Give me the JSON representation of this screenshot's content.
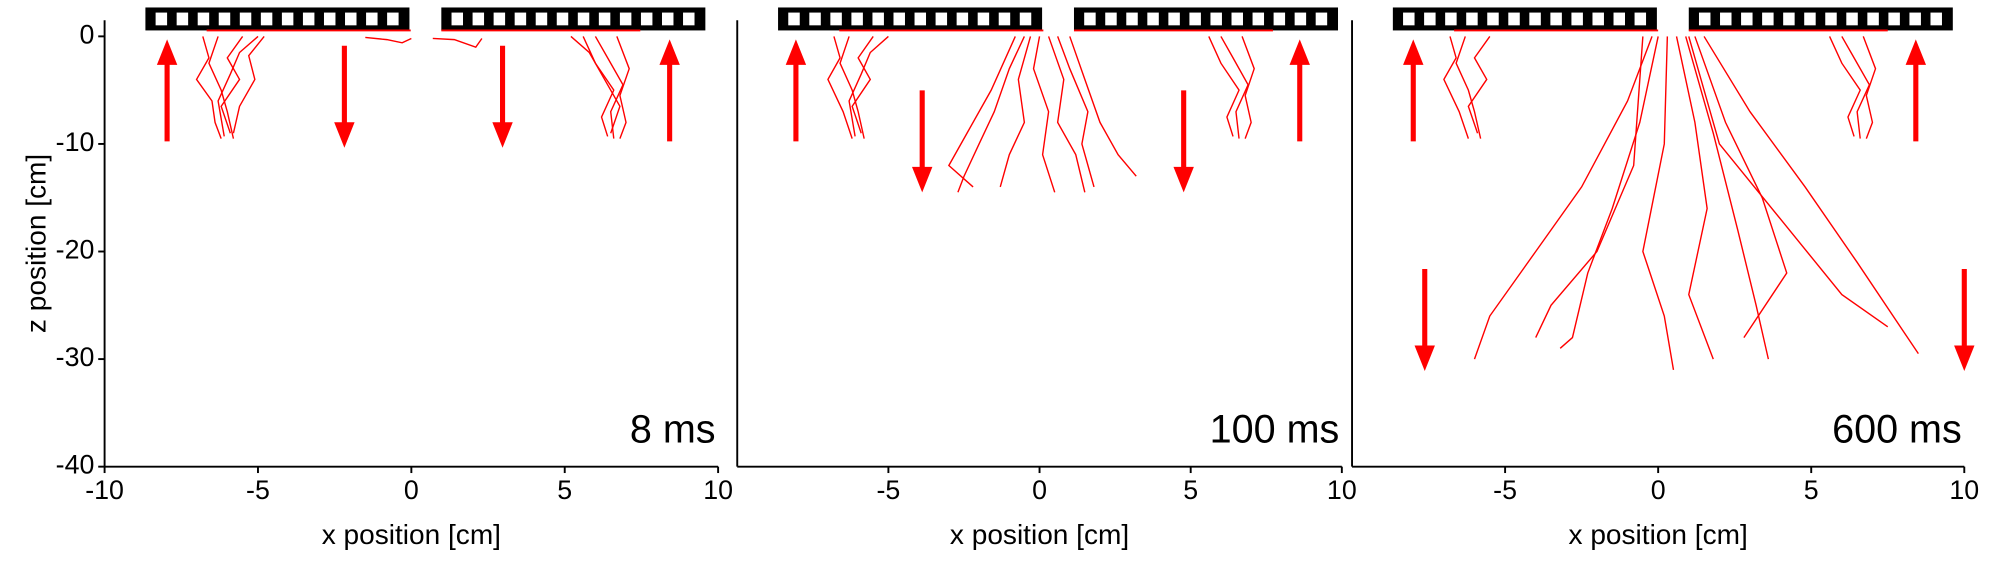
{
  "chart_data": [
    {
      "type": "line",
      "annotation": "8 ms",
      "xlabel": "x position [cm]",
      "ylabel": "z position [cm]",
      "color": "#ff0000",
      "xlim": [
        -10,
        10
      ],
      "xticks": [
        -10,
        -5,
        0,
        5,
        10
      ],
      "ylim": [
        -40,
        1.5
      ],
      "yticks": [
        0,
        -10,
        -20,
        -30,
        -40
      ],
      "series": [
        {
          "x": [
            -6.8,
            -6.6,
            -7.0,
            -6.5,
            -6.4,
            -6.2
          ],
          "values": [
            0,
            -2,
            -4,
            -6,
            -8,
            -9.5
          ]
        },
        {
          "x": [
            -6.3,
            -6.6,
            -6.2,
            -6.0,
            -5.8
          ],
          "values": [
            0,
            -2.5,
            -5,
            -7,
            -9.5
          ]
        },
        {
          "x": [
            -5.5,
            -6.0,
            -5.6,
            -6.2,
            -5.9
          ],
          "values": [
            0,
            -2,
            -4,
            -6.5,
            -9
          ]
        },
        {
          "x": [
            -5.0,
            -5.6,
            -5.9,
            -6.3,
            -6.1
          ],
          "values": [
            0,
            -1.5,
            -3.5,
            -6,
            -9.3
          ]
        },
        {
          "x": [
            -4.8,
            -5.3,
            -5.1,
            -5.6,
            -5.8
          ],
          "values": [
            0,
            -1.8,
            -4,
            -6.5,
            -9
          ]
        },
        {
          "x": [
            6.0,
            6.4,
            6.9,
            6.5,
            6.6
          ],
          "values": [
            0,
            -2,
            -4.5,
            -7,
            -9.5
          ]
        },
        {
          "x": [
            5.6,
            6.0,
            6.6,
            6.2,
            6.4
          ],
          "values": [
            0,
            -2.5,
            -5,
            -7.5,
            -9.3
          ]
        },
        {
          "x": [
            6.7,
            7.1,
            6.8,
            7.0,
            6.8
          ],
          "values": [
            0,
            -3,
            -5.5,
            -8,
            -9.5
          ]
        },
        {
          "x": [
            5.2,
            5.8,
            6.3,
            6.8,
            6.5
          ],
          "values": [
            0,
            -1.5,
            -4,
            -6.5,
            -9
          ]
        },
        {
          "x": [
            -1.5,
            -0.8,
            -0.3,
            0
          ],
          "values": [
            -0.1,
            -0.3,
            -0.6,
            -0.2
          ]
        },
        {
          "x": [
            0.7,
            1.4,
            2.1,
            2.3
          ],
          "values": [
            -0.2,
            -0.3,
            -1.0,
            -0.2
          ]
        }
      ]
    },
    {
      "type": "line",
      "annotation": "100 ms",
      "xlabel": "x position [cm]",
      "color": "#ff0000",
      "xlim": [
        -10,
        10
      ],
      "xticks": [
        -5,
        0,
        5,
        10
      ],
      "ylim": [
        -40,
        1.5
      ],
      "series": [
        {
          "x": [
            -6.8,
            -6.6,
            -7.0,
            -6.5,
            -6.2
          ],
          "values": [
            0,
            -2,
            -4,
            -7,
            -9.5
          ]
        },
        {
          "x": [
            -6.3,
            -6.6,
            -6.2,
            -6.0,
            -5.8
          ],
          "values": [
            0,
            -2.5,
            -5,
            -7,
            -9.5
          ]
        },
        {
          "x": [
            -5.5,
            -6.0,
            -5.6,
            -6.2,
            -5.9
          ],
          "values": [
            0,
            -2,
            -4,
            -6.5,
            -9
          ]
        },
        {
          "x": [
            -5.0,
            -5.6,
            -5.9,
            -6.3,
            -6.1
          ],
          "values": [
            0,
            -1.5,
            -3.5,
            -6,
            -9.3
          ]
        },
        {
          "x": [
            6.0,
            6.4,
            6.9,
            6.5,
            6.6
          ],
          "values": [
            0,
            -2,
            -4.5,
            -7,
            -9.5
          ]
        },
        {
          "x": [
            5.6,
            6.0,
            6.6,
            6.2,
            6.4
          ],
          "values": [
            0,
            -2.5,
            -5,
            -7.5,
            -9.3
          ]
        },
        {
          "x": [
            6.7,
            7.1,
            6.8,
            7.0,
            6.8
          ],
          "values": [
            0,
            -3,
            -5.5,
            -8,
            -9.5
          ]
        },
        {
          "x": [
            -0.5,
            -1,
            -1.5,
            -2.0,
            -2.5,
            -2.7
          ],
          "values": [
            0,
            -3,
            -7,
            -10,
            -13,
            -14.5
          ]
        },
        {
          "x": [
            -0.3,
            -0.7,
            -0.5,
            -1.0,
            -1.3
          ],
          "values": [
            0,
            -4,
            -8,
            -11,
            -14
          ]
        },
        {
          "x": [
            0,
            -0.2,
            0.3,
            0.1,
            0.5
          ],
          "values": [
            0,
            -3,
            -7,
            -11,
            -14.5
          ]
        },
        {
          "x": [
            0.3,
            0.8,
            0.6,
            1.2,
            1.5
          ],
          "values": [
            0,
            -4,
            -8,
            -11,
            -14.5
          ]
        },
        {
          "x": [
            0.6,
            1.0,
            1.6,
            1.4,
            1.8
          ],
          "values": [
            0,
            -3,
            -7,
            -10,
            -14
          ]
        },
        {
          "x": [
            1.0,
            1.5,
            2.0,
            2.6,
            3.2
          ],
          "values": [
            0,
            -4,
            -8,
            -11,
            -13
          ]
        },
        {
          "x": [
            -0.8,
            -1.6,
            -2.4,
            -3.0,
            -2.2
          ],
          "values": [
            0,
            -5,
            -9,
            -12,
            -14
          ]
        }
      ]
    },
    {
      "type": "line",
      "annotation": "600 ms",
      "xlabel": "x position [cm]",
      "color": "#ff0000",
      "xlim": [
        -10,
        10
      ],
      "xticks": [
        -5,
        0,
        5,
        10
      ],
      "ylim": [
        -40,
        1.5
      ],
      "series": [
        {
          "x": [
            -6.8,
            -6.6,
            -7.0,
            -6.5,
            -6.2
          ],
          "values": [
            0,
            -2,
            -4,
            -7,
            -9.5
          ]
        },
        {
          "x": [
            -6.3,
            -6.6,
            -6.2,
            -6.0,
            -5.8
          ],
          "values": [
            0,
            -2.5,
            -5,
            -7,
            -9.5
          ]
        },
        {
          "x": [
            -5.5,
            -6.0,
            -5.6,
            -6.2,
            -5.9
          ],
          "values": [
            0,
            -2,
            -4,
            -6.5,
            -9
          ]
        },
        {
          "x": [
            6.0,
            6.4,
            6.9,
            6.5,
            6.6
          ],
          "values": [
            0,
            -2,
            -4.5,
            -7,
            -9.5
          ]
        },
        {
          "x": [
            5.6,
            6.0,
            6.6,
            6.2,
            6.4
          ],
          "values": [
            0,
            -2.5,
            -5,
            -7.5,
            -9.3
          ]
        },
        {
          "x": [
            6.7,
            7.1,
            6.8,
            7.0,
            6.8
          ],
          "values": [
            0,
            -3,
            -5.5,
            -8,
            -9.5
          ]
        },
        {
          "x": [
            -0.2,
            -1,
            -2.5,
            -4,
            -5.5,
            -6
          ],
          "values": [
            0,
            -6,
            -14,
            -20,
            -26,
            -30
          ]
        },
        {
          "x": [
            0,
            -0.6,
            -1.5,
            -2.3,
            -2.8,
            -3.2
          ],
          "values": [
            0,
            -8,
            -16,
            -22,
            -28,
            -29
          ]
        },
        {
          "x": [
            0.3,
            0.2,
            -0.5,
            0.2,
            0.5
          ],
          "values": [
            0,
            -10,
            -20,
            -26,
            -31
          ]
        },
        {
          "x": [
            0.6,
            1.2,
            1.6,
            1.0,
            1.8
          ],
          "values": [
            0,
            -8,
            -16,
            -24,
            -30
          ]
        },
        {
          "x": [
            0.9,
            1.8,
            2.6,
            3.2,
            3.6
          ],
          "values": [
            0,
            -9,
            -18,
            -25,
            -30
          ]
        },
        {
          "x": [
            1.2,
            2.2,
            3.4,
            4.2,
            2.8
          ],
          "values": [
            0,
            -8,
            -15,
            -22,
            -28
          ]
        },
        {
          "x": [
            1.5,
            3.0,
            4.8,
            6.5,
            8.5
          ],
          "values": [
            0,
            -7,
            -14,
            -21,
            -29.5
          ]
        },
        {
          "x": [
            1.0,
            2.0,
            4.0,
            6.0,
            7.5
          ],
          "values": [
            0,
            -10,
            -17,
            -24,
            -27
          ]
        },
        {
          "x": [
            -0.5,
            -0.8,
            -2,
            -3.5,
            -4
          ],
          "values": [
            0,
            -12,
            -20,
            -25,
            -28
          ]
        }
      ]
    }
  ]
}
